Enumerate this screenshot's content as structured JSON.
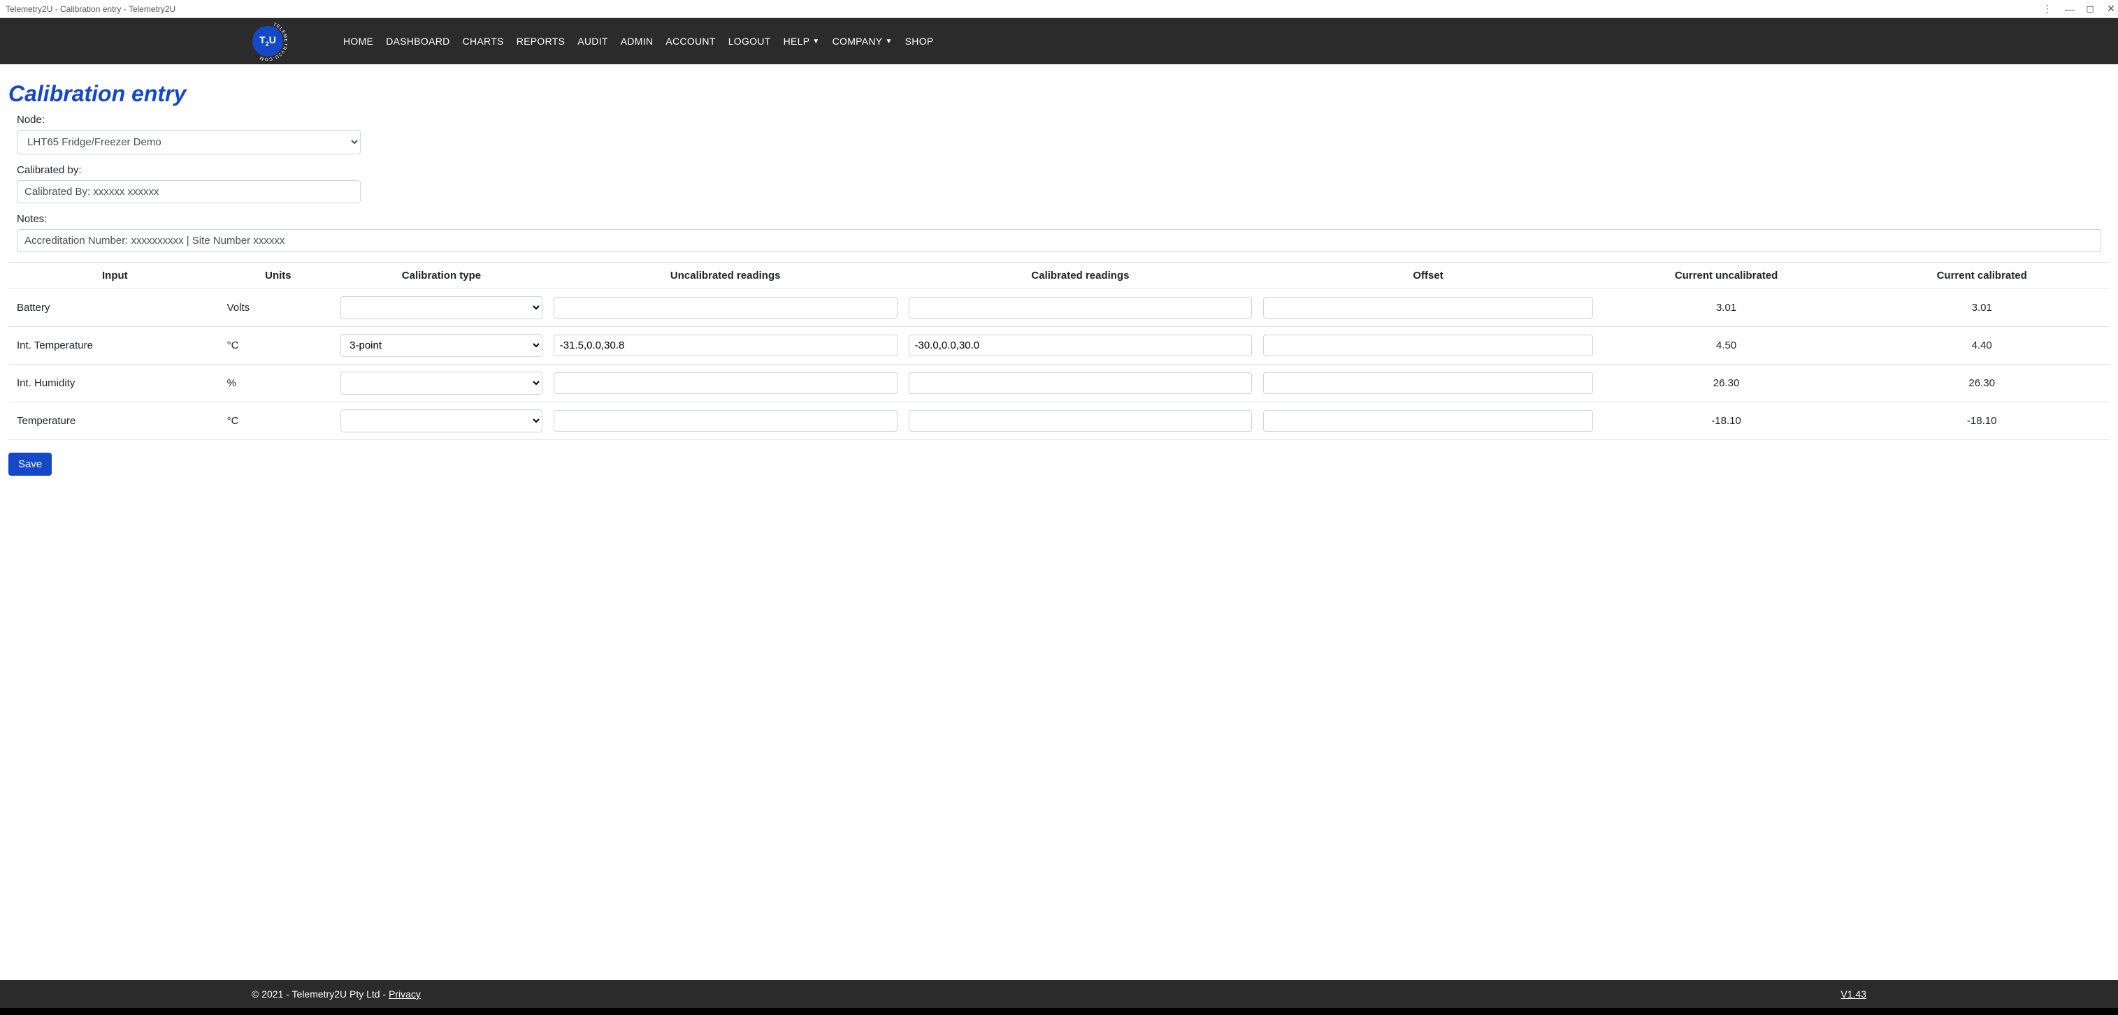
{
  "window": {
    "title": "Telemetry2U - Calibration entry - Telemetry2U"
  },
  "nav": {
    "links": [
      {
        "label": "HOME",
        "caret": false
      },
      {
        "label": "DASHBOARD",
        "caret": false
      },
      {
        "label": "CHARTS",
        "caret": false
      },
      {
        "label": "REPORTS",
        "caret": false
      },
      {
        "label": "AUDIT",
        "caret": false
      },
      {
        "label": "ADMIN",
        "caret": false
      },
      {
        "label": "ACCOUNT",
        "caret": false
      },
      {
        "label": "LOGOUT",
        "caret": false
      },
      {
        "label": "HELP",
        "caret": true
      },
      {
        "label": "COMPANY",
        "caret": true
      },
      {
        "label": "SHOP",
        "caret": false
      }
    ]
  },
  "page": {
    "title": "Calibration entry"
  },
  "form": {
    "node_label": "Node:",
    "node_value": "LHT65 Fridge/Freezer Demo",
    "calibrated_by_label": "Calibrated by:",
    "calibrated_by_value": "Calibrated By: xxxxxx xxxxxx",
    "notes_label": "Notes:",
    "notes_value": "Accreditation Number: xxxxxxxxxx | Site Number xxxxxx",
    "save_label": "Save"
  },
  "table": {
    "headers": {
      "input": "Input",
      "units": "Units",
      "caltype": "Calibration type",
      "uncal": "Uncalibrated readings",
      "cal": "Calibrated readings",
      "offset": "Offset",
      "cur_uncal": "Current uncalibrated",
      "cur_cal": "Current calibrated"
    },
    "rows": [
      {
        "input": "Battery",
        "units": "Volts",
        "caltype": "",
        "uncal": "",
        "cal": "",
        "offset": "",
        "cur_uncal": "3.01",
        "cur_cal": "3.01"
      },
      {
        "input": "Int. Temperature",
        "units": "°C",
        "caltype": "3-point",
        "uncal": "-31.5,0.0,30.8",
        "cal": "-30.0,0.0,30.0",
        "offset": "",
        "cur_uncal": "4.50",
        "cur_cal": "4.40"
      },
      {
        "input": "Int. Humidity",
        "units": "%",
        "caltype": "",
        "uncal": "",
        "cal": "",
        "offset": "",
        "cur_uncal": "26.30",
        "cur_cal": "26.30"
      },
      {
        "input": "Temperature",
        "units": "°C",
        "caltype": "",
        "uncal": "",
        "cal": "",
        "offset": "",
        "cur_uncal": "-18.10",
        "cur_cal": "-18.10"
      }
    ]
  },
  "footer": {
    "copyright": "© 2021 - Telemetry2U Pty Ltd - ",
    "privacy": "Privacy",
    "version": "V1.43"
  }
}
